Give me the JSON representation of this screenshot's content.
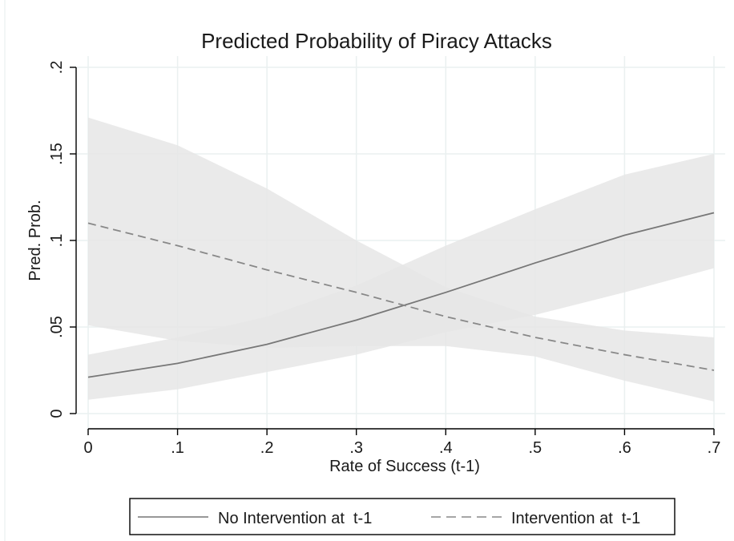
{
  "chart_data": {
    "type": "line",
    "title": "Predicted Probability of Piracy Attacks",
    "xlabel": "Rate of Success (t-1)",
    "ylabel": "Pred. Prob.",
    "xlim": [
      0,
      0.7
    ],
    "ylim": [
      0,
      0.2
    ],
    "x_ticks": [
      {
        "value": 0,
        "label": "0"
      },
      {
        "value": 0.1,
        "label": ".1"
      },
      {
        "value": 0.2,
        "label": ".2"
      },
      {
        "value": 0.3,
        "label": ".3"
      },
      {
        "value": 0.4,
        "label": ".4"
      },
      {
        "value": 0.5,
        "label": ".5"
      },
      {
        "value": 0.6,
        "label": ".6"
      },
      {
        "value": 0.7,
        "label": ".7"
      }
    ],
    "y_ticks": [
      {
        "value": 0,
        "label": "0"
      },
      {
        "value": 0.05,
        "label": ".05"
      },
      {
        "value": 0.1,
        "label": ".1"
      },
      {
        "value": 0.15,
        "label": ".15"
      },
      {
        "value": 0.2,
        "label": ".2"
      }
    ],
    "grid": true,
    "legend_position": "bottom",
    "x": [
      0,
      0.1,
      0.2,
      0.3,
      0.4,
      0.5,
      0.6,
      0.7
    ],
    "series": [
      {
        "name": "No Intervention at  t-1",
        "style": "solid",
        "color": "#777777",
        "values": [
          0.021,
          0.029,
          0.04,
          0.054,
          0.07,
          0.087,
          0.103,
          0.116
        ],
        "ci_lower": [
          0.008,
          0.014,
          0.024,
          0.034,
          0.047,
          0.057,
          0.07,
          0.084
        ],
        "ci_upper": [
          0.034,
          0.044,
          0.056,
          0.074,
          0.097,
          0.118,
          0.138,
          0.15
        ]
      },
      {
        "name": "Intervention at  t-1",
        "style": "dashed",
        "color": "#888888",
        "values": [
          0.11,
          0.097,
          0.083,
          0.07,
          0.056,
          0.044,
          0.034,
          0.025
        ],
        "ci_lower": [
          0.051,
          0.042,
          0.038,
          0.039,
          0.039,
          0.033,
          0.019,
          0.007
        ],
        "ci_upper": [
          0.171,
          0.155,
          0.13,
          0.1,
          0.073,
          0.056,
          0.048,
          0.044
        ]
      }
    ],
    "colors": {
      "band": "#e6e6e6",
      "grid": "#eaf0f0",
      "axis": "#000000"
    }
  }
}
